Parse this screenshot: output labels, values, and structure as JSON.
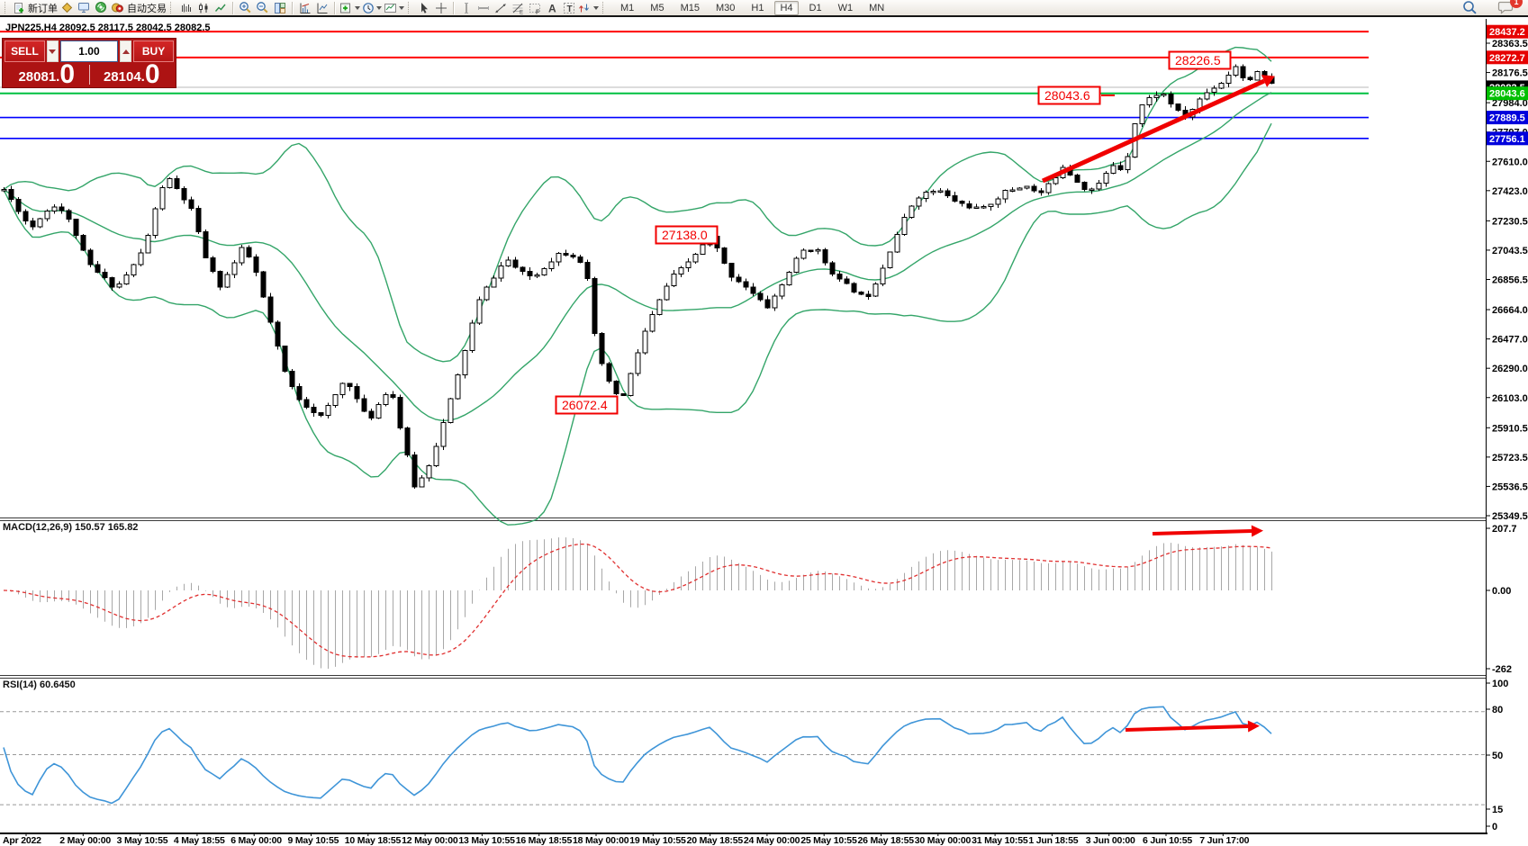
{
  "toolbar": {
    "new_order_label": "新订单",
    "autotrade_label": "自动交易",
    "timeframes": [
      "M1",
      "M5",
      "M15",
      "M30",
      "H1",
      "H4",
      "D1",
      "W1",
      "MN"
    ],
    "active_timeframe": "H4",
    "notification_count": "1"
  },
  "chart": {
    "symbol_label": "JPN225,H4  28092.5 28117.5 28042.5 28082.5",
    "trade_panel": {
      "sell_label": "SELL",
      "buy_label": "BUY",
      "lot_size": "1.00",
      "sell_price_main": "28081.",
      "sell_price_big": "0",
      "buy_price_main": "28104.",
      "buy_price_big": "0"
    }
  },
  "chart_data": {
    "type": "candlestick",
    "symbol": "JPN225",
    "timeframe": "H4",
    "ohlc_current": {
      "open": "28092.5",
      "high": "28117.5",
      "low": "28042.5",
      "close": "28082.5"
    },
    "y_ticks": [
      "28363.5",
      "28176.5",
      "27984.0",
      "27797.0",
      "27610.0",
      "27423.0",
      "27230.5",
      "27043.5",
      "26856.5",
      "26664.0",
      "26477.0",
      "26290.0",
      "26103.0",
      "25910.5",
      "25723.5",
      "25536.5",
      "25349.5"
    ],
    "levels": [
      {
        "price": 28437.2,
        "label": "28437.2",
        "line_color": "#ff0000",
        "line_width": 2,
        "badge_color": "#e60000"
      },
      {
        "price": 28272.7,
        "label": "28272.7",
        "line_color": "#ff0000",
        "line_width": 2,
        "badge_color": "#e60000"
      },
      {
        "price": 28082.5,
        "label": "28082.5",
        "line_color": "#b8b8b8",
        "line_width": 1,
        "badge_color": "#000000"
      },
      {
        "price": 28043.6,
        "label": "28043.6",
        "line_color": "#00c040",
        "line_width": 2,
        "badge_color": "#00c000"
      },
      {
        "price": 27889.5,
        "label": "27889.5",
        "line_color": "#0000ff",
        "line_width": 1.6,
        "badge_color": "#0000dc"
      },
      {
        "price": 27756.1,
        "label": "27756.1",
        "line_color": "#0000ff",
        "line_width": 1.6,
        "badge_color": "#0000dc"
      }
    ],
    "x_labels": [
      "Apr 2022",
      "2 May 00:00",
      "3 May 10:55",
      "4 May 18:55",
      "6 May 00:00",
      "9 May 10:55",
      "10 May 18:55",
      "12 May 00:00",
      "13 May 10:55",
      "16 May 18:55",
      "18 May 00:00",
      "19 May 10:55",
      "20 May 18:55",
      "24 May 00:00",
      "25 May 10:55",
      "26 May 18:55",
      "30 May 00:00",
      "31 May 10:55",
      "1 Jun 18:55",
      "3 Jun 00:00",
      "6 Jun 10:55",
      "7 Jun 17:00"
    ],
    "price_path": [
      [
        4,
        27430
      ],
      [
        20,
        27300
      ],
      [
        34,
        27180
      ],
      [
        48,
        27280
      ],
      [
        63,
        27340
      ],
      [
        80,
        27200
      ],
      [
        97,
        26960
      ],
      [
        112,
        26880
      ],
      [
        128,
        26800
      ],
      [
        145,
        26920
      ],
      [
        160,
        27060
      ],
      [
        172,
        27300
      ],
      [
        184,
        27520
      ],
      [
        198,
        27420
      ],
      [
        212,
        27300
      ],
      [
        228,
        27000
      ],
      [
        243,
        26810
      ],
      [
        258,
        26940
      ],
      [
        270,
        27070
      ],
      [
        284,
        26900
      ],
      [
        300,
        26580
      ],
      [
        315,
        26280
      ],
      [
        328,
        26120
      ],
      [
        342,
        26040
      ],
      [
        357,
        25980
      ],
      [
        370,
        26100
      ],
      [
        384,
        26230
      ],
      [
        397,
        26080
      ],
      [
        409,
        25950
      ],
      [
        422,
        26080
      ],
      [
        433,
        26180
      ],
      [
        447,
        25840
      ],
      [
        460,
        25540
      ],
      [
        470,
        25600
      ],
      [
        480,
        25730
      ],
      [
        492,
        25940
      ],
      [
        505,
        26180
      ],
      [
        518,
        26450
      ],
      [
        530,
        26700
      ],
      [
        545,
        26850
      ],
      [
        562,
        26990
      ],
      [
        578,
        26900
      ],
      [
        593,
        26870
      ],
      [
        608,
        26960
      ],
      [
        622,
        27030
      ],
      [
        638,
        27010
      ],
      [
        650,
        26940
      ],
      [
        660,
        26500
      ],
      [
        672,
        26230
      ],
      [
        690,
        26080
      ],
      [
        703,
        26300
      ],
      [
        714,
        26500
      ],
      [
        730,
        26700
      ],
      [
        744,
        26860
      ],
      [
        760,
        26940
      ],
      [
        775,
        27040
      ],
      [
        790,
        27140
      ],
      [
        800,
        26990
      ],
      [
        812,
        26880
      ],
      [
        825,
        26830
      ],
      [
        840,
        26740
      ],
      [
        852,
        26680
      ],
      [
        866,
        26800
      ],
      [
        880,
        26950
      ],
      [
        892,
        27040
      ],
      [
        905,
        27060
      ],
      [
        918,
        26950
      ],
      [
        930,
        26860
      ],
      [
        940,
        26820
      ],
      [
        952,
        26770
      ],
      [
        961,
        26730
      ],
      [
        975,
        26870
      ],
      [
        987,
        27030
      ],
      [
        1000,
        27200
      ],
      [
        1017,
        27380
      ],
      [
        1030,
        27410
      ],
      [
        1041,
        27430
      ],
      [
        1053,
        27380
      ],
      [
        1066,
        27340
      ],
      [
        1078,
        27320
      ],
      [
        1090,
        27300
      ],
      [
        1104,
        27360
      ],
      [
        1117,
        27420
      ],
      [
        1130,
        27440
      ],
      [
        1142,
        27460
      ],
      [
        1152,
        27390
      ],
      [
        1160,
        27430
      ],
      [
        1170,
        27500
      ],
      [
        1180,
        27580
      ],
      [
        1190,
        27520
      ],
      [
        1200,
        27460
      ],
      [
        1208,
        27420
      ],
      [
        1218,
        27450
      ],
      [
        1228,
        27530
      ],
      [
        1238,
        27600
      ],
      [
        1248,
        27540
      ],
      [
        1256,
        27760
      ],
      [
        1264,
        27950
      ],
      [
        1272,
        27990
      ],
      [
        1280,
        28030
      ],
      [
        1290,
        28050
      ],
      [
        1300,
        27980
      ],
      [
        1310,
        27910
      ],
      [
        1318,
        27890
      ],
      [
        1326,
        27960
      ],
      [
        1334,
        28020
      ],
      [
        1342,
        28060
      ],
      [
        1350,
        28090
      ],
      [
        1358,
        28120
      ],
      [
        1366,
        28180
      ],
      [
        1372,
        28220
      ],
      [
        1378,
        28160
      ],
      [
        1384,
        28120
      ],
      [
        1390,
        28150
      ],
      [
        1396,
        28170
      ],
      [
        1402,
        28160
      ],
      [
        1408,
        28130
      ],
      [
        1414,
        28085
      ]
    ],
    "annotations": [
      {
        "name": "peak-price-label",
        "text": "28226.5"
      },
      {
        "name": "breakout-level-label",
        "text": "28043.6"
      },
      {
        "name": "resistance-price-label",
        "text": "27138.0"
      },
      {
        "name": "swing-low-price-label",
        "text": "26072.4"
      }
    ],
    "indicators": {
      "bollinger": {
        "period": 20,
        "deviation": 2,
        "color": "#34a569"
      },
      "macd": {
        "label": "MACD(12,26,9) 150.57 165.82",
        "axis_ticks": [
          "207.7",
          "0.00",
          "-262"
        ],
        "histogram_color": "#a8a8a8",
        "signal_color": "#e03030"
      },
      "rsi": {
        "label": "RSI(14) 60.6450",
        "axis_ticks": [
          "100",
          "80",
          "50",
          "15",
          "0"
        ],
        "level_lines": [
          80,
          50,
          15
        ],
        "line_color": "#3f95d8"
      }
    },
    "trend_arrows_color": "#f00000"
  }
}
